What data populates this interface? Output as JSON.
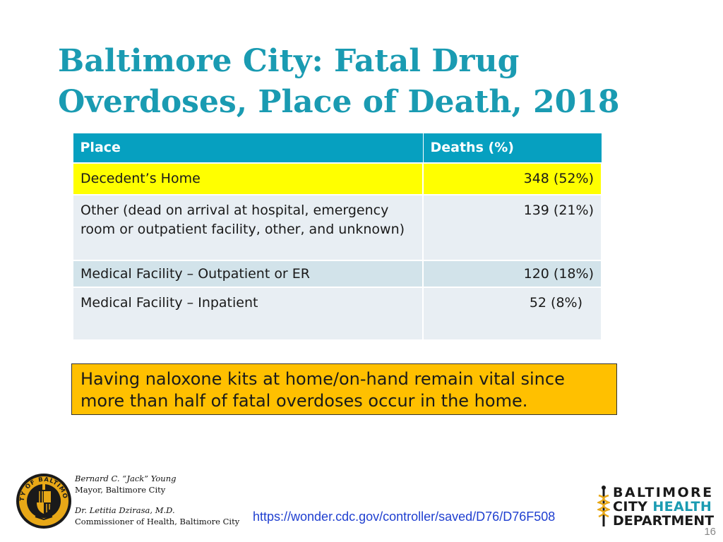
{
  "slide": {
    "title": "Baltimore City: Fatal Drug Overdoses, Place of Death, 2018",
    "page_number": "16"
  },
  "table": {
    "headers": [
      "Place",
      "Deaths (%)"
    ],
    "rows": [
      {
        "place": "Decedent’s Home",
        "deaths": "348 (52%)"
      },
      {
        "place": "Other (dead on arrival at hospital, emergency room or outpatient facility, other, and unknown)",
        "deaths": "139 (21%)"
      },
      {
        "place": "Medical Facility – Outpatient or ER",
        "deaths": "120 (18%)"
      },
      {
        "place": "Medical Facility – Inpatient",
        "deaths": "52 (8%)"
      }
    ]
  },
  "callout": {
    "text": "Having naloxone kits at home/on-hand remain vital since more than half of fatal overdoses occur in the home."
  },
  "footer": {
    "mayor_name": "Bernard C. “Jack” Young",
    "mayor_title": "Mayor, Baltimore City",
    "commissioner_name": "Dr. Letitia Dzirasa, M.D.",
    "commissioner_title": "Commissioner of Health, Baltimore City",
    "source_link": "https://wonder.cdc.gov/controller/saved/D76/D76F508",
    "seal_text": "CITY OF BALTIMORE",
    "logo": {
      "line1": "BALTIMORE",
      "line2_a": "CITY",
      "line2_b": "HEALTH",
      "line3": "DEPARTMENT"
    }
  },
  "colors": {
    "title": "#1a9bb2",
    "header_bg": "#06a0c0",
    "highlight_row": "#ffff00",
    "callout_bg": "#ffc000",
    "link": "#1f3fd0"
  }
}
